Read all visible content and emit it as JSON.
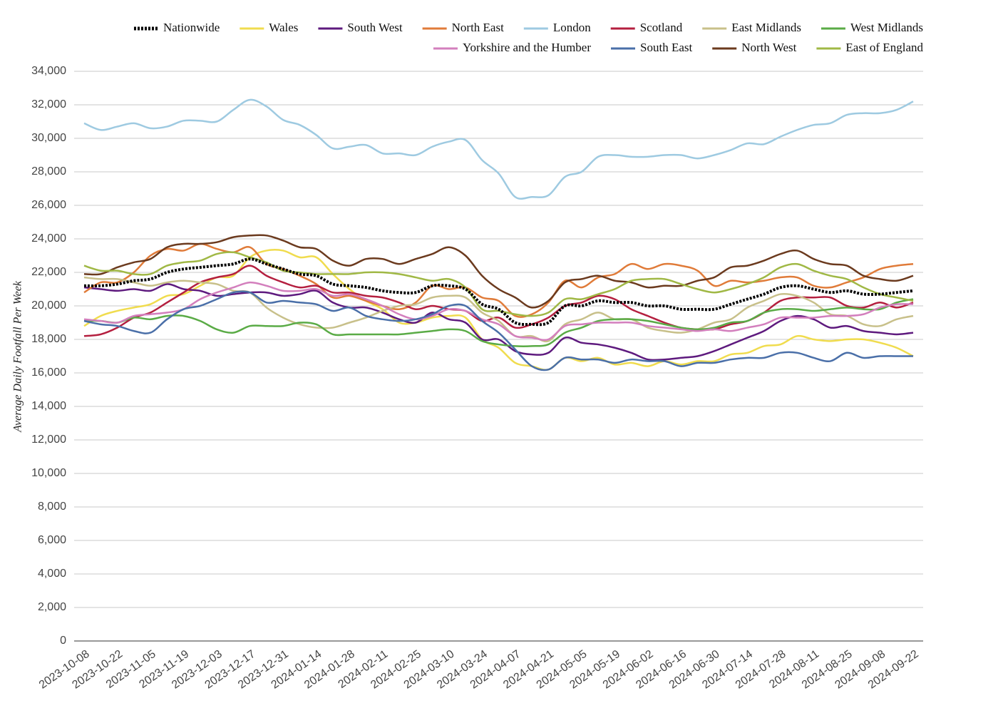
{
  "chart_data": {
    "type": "line",
    "y_label": "Average Daily Footfall Per Week",
    "categories": [
      "2023-10-08",
      null,
      "2023-10-22",
      null,
      "2023-11-05",
      null,
      "2023-11-19",
      null,
      "2023-12-03",
      null,
      "2023-12-17",
      null,
      "2023-12-31",
      null,
      "2024-01-14",
      null,
      "2024-01-28",
      null,
      "2024-02-11",
      null,
      "2024-02-25",
      null,
      "2024-03-10",
      null,
      "2024-03-24",
      null,
      "2024-04-07",
      null,
      "2024-04-21",
      null,
      "2024-05-05",
      null,
      "2024-05-19",
      null,
      "2024-06-02",
      null,
      "2024-06-16",
      null,
      "2024-06-30",
      null,
      "2024-07-14",
      null,
      "2024-07-28",
      null,
      "2024-08-11",
      null,
      "2024-08-25",
      null,
      "2024-09-08",
      null,
      "2024-09-22"
    ],
    "ylim": [
      0,
      34000
    ],
    "yticks": [
      0,
      {
        "value": 2000,
        "label": "2,000"
      },
      {
        "value": 4000,
        "label": "4,000"
      },
      {
        "value": 6000,
        "label": "6,000"
      },
      {
        "value": 8000,
        "label": "8,000"
      },
      {
        "value": 10000,
        "label": "10,000"
      },
      {
        "value": 12000,
        "label": "12,000"
      },
      {
        "value": 14000,
        "label": "14,000"
      },
      {
        "value": 16000,
        "label": "16,000"
      },
      {
        "value": 18000,
        "label": "18,000"
      },
      {
        "value": 20000,
        "label": "20,000"
      },
      {
        "value": 22000,
        "label": "22,000"
      },
      {
        "value": 24000,
        "label": "24,000"
      },
      {
        "value": 26000,
        "label": "26,000"
      },
      {
        "value": 28000,
        "label": "28,000"
      },
      {
        "value": 30000,
        "label": "30,000"
      },
      {
        "value": 32000,
        "label": "32,000"
      },
      {
        "value": 34000,
        "label": "34,000"
      }
    ],
    "grid": true,
    "legend": "top-right",
    "series": [
      {
        "name": "Nationwide",
        "color": "#000000",
        "dashed": true,
        "values": [
          21200,
          21200,
          21300,
          21500,
          21600,
          22000,
          22200,
          22300,
          22400,
          22500,
          22800,
          22500,
          22200,
          21900,
          21800,
          21300,
          21200,
          21100,
          20900,
          20800,
          20800,
          21200,
          21200,
          21000,
          20100,
          19800,
          19000,
          18900,
          19000,
          20000,
          20000,
          20300,
          20200,
          20200,
          20000,
          20000,
          19800,
          19800,
          19800,
          20100,
          20400,
          20700,
          21100,
          21200,
          21000,
          20800,
          20900,
          20700,
          20700,
          20800,
          20900
        ]
      },
      {
        "name": "Wales",
        "color": "#f0dc4e",
        "values": [
          18800,
          19400,
          19700,
          19900,
          20100,
          20600,
          20700,
          21200,
          21700,
          21800,
          22900,
          23300,
          23300,
          22900,
          22900,
          21900,
          21000,
          20300,
          19800,
          19000,
          19000,
          19300,
          19400,
          19300,
          18000,
          17500,
          16600,
          16400,
          16200,
          16900,
          16700,
          16900,
          16500,
          16600,
          16400,
          16700,
          16500,
          16700,
          16700,
          17100,
          17200,
          17600,
          17700,
          18200,
          18000,
          17900,
          18000,
          18000,
          17800,
          17500,
          17000
        ]
      },
      {
        "name": "South West",
        "color": "#5e1a7e",
        "values": [
          21100,
          21000,
          20900,
          21000,
          20900,
          21300,
          21000,
          20900,
          20600,
          20700,
          20800,
          20800,
          20600,
          20700,
          20900,
          20200,
          19900,
          19900,
          19600,
          19200,
          19000,
          19600,
          19200,
          19000,
          18000,
          18000,
          17300,
          17100,
          17200,
          18100,
          17800,
          17700,
          17500,
          17200,
          16800,
          16800,
          16900,
          17000,
          17300,
          17700,
          18100,
          18500,
          19100,
          19400,
          19200,
          18700,
          18800,
          18500,
          18400,
          18300,
          18400
        ]
      },
      {
        "name": "North East",
        "color": "#e07b39",
        "values": [
          20800,
          21400,
          21400,
          22000,
          23000,
          23400,
          23300,
          23700,
          23400,
          23200,
          23500,
          22500,
          22200,
          21800,
          21300,
          20500,
          20600,
          20300,
          20000,
          19800,
          20200,
          21200,
          21000,
          21100,
          20500,
          20300,
          19400,
          19500,
          20200,
          21500,
          21100,
          21700,
          21900,
          22500,
          22200,
          22500,
          22400,
          22100,
          21200,
          21500,
          21400,
          21500,
          21700,
          21700,
          21200,
          21100,
          21400,
          21700,
          22200,
          22400,
          22500
        ]
      },
      {
        "name": "London",
        "color": "#9ecae1",
        "values": [
          30900,
          30500,
          30700,
          30900,
          30600,
          30700,
          31050,
          31050,
          31000,
          31700,
          32300,
          31900,
          31100,
          30800,
          30200,
          29400,
          29500,
          29600,
          29100,
          29100,
          29000,
          29500,
          29800,
          29900,
          28700,
          27900,
          26500,
          26500,
          26600,
          27700,
          28000,
          28900,
          29000,
          28900,
          28900,
          29000,
          29000,
          28800,
          29000,
          29300,
          29700,
          29650,
          30100,
          30500,
          30800,
          30900,
          31400,
          31500,
          31500,
          31700,
          32200
        ]
      },
      {
        "name": "Scotland",
        "color": "#b41f3f",
        "values": [
          18200,
          18300,
          18700,
          19300,
          19600,
          20200,
          20800,
          21400,
          21700,
          21900,
          22400,
          21800,
          21400,
          21100,
          21200,
          20800,
          20800,
          20600,
          20500,
          20200,
          19800,
          20000,
          19800,
          19700,
          19100,
          19300,
          18700,
          18900,
          19300,
          20000,
          20200,
          20600,
          20400,
          19800,
          19400,
          19000,
          18700,
          18600,
          18600,
          18900,
          19100,
          19600,
          20300,
          20500,
          20500,
          20500,
          20000,
          19900,
          20200,
          19900,
          20200
        ]
      },
      {
        "name": "East Midlands",
        "color": "#c8c08a",
        "values": [
          21700,
          21600,
          21600,
          21400,
          21200,
          21400,
          21500,
          21400,
          21300,
          20900,
          20800,
          19900,
          19300,
          18900,
          18700,
          18700,
          19000,
          19300,
          19700,
          20000,
          20100,
          20500,
          20600,
          20500,
          19600,
          19100,
          18200,
          18200,
          17900,
          18900,
          19200,
          19600,
          19200,
          19200,
          18700,
          18500,
          18400,
          18600,
          19000,
          19200,
          19900,
          20300,
          20700,
          20600,
          20200,
          19500,
          19400,
          18900,
          18800,
          19200,
          19400
        ]
      },
      {
        "name": "West Midlands",
        "color": "#5aab46",
        "values": [
          19100,
          19100,
          19000,
          19300,
          19200,
          19400,
          19400,
          19100,
          18600,
          18400,
          18800,
          18800,
          18800,
          19000,
          18900,
          18300,
          18300,
          18300,
          18300,
          18300,
          18400,
          18500,
          18600,
          18500,
          17900,
          17700,
          17600,
          17600,
          17700,
          18400,
          18700,
          19100,
          19200,
          19200,
          19100,
          18900,
          18700,
          18600,
          18700,
          19000,
          19100,
          19600,
          19800,
          19800,
          19700,
          19800,
          19900,
          19800,
          19800,
          20200,
          20400
        ]
      },
      {
        "name": "Yorkshire and the Humber",
        "color": "#d37fbd",
        "values": [
          19200,
          19100,
          19000,
          19400,
          19500,
          19600,
          19800,
          20400,
          20800,
          21100,
          21400,
          21200,
          20900,
          20900,
          21000,
          20600,
          20700,
          20400,
          20000,
          19500,
          19200,
          19400,
          19800,
          19700,
          19200,
          18900,
          18200,
          18100,
          18000,
          18800,
          18900,
          19000,
          19000,
          19000,
          18800,
          18700,
          18600,
          18500,
          18600,
          18500,
          18700,
          18900,
          19300,
          19300,
          19300,
          19400,
          19400,
          19500,
          19900,
          20100,
          20100
        ]
      },
      {
        "name": "South East",
        "color": "#4a6fa8",
        "values": [
          19100,
          18900,
          18800,
          18500,
          18400,
          19200,
          19800,
          20000,
          20400,
          20800,
          20800,
          20200,
          20300,
          20200,
          20100,
          19700,
          19900,
          19400,
          19200,
          19100,
          19200,
          19500,
          20000,
          20000,
          19100,
          18400,
          17400,
          16400,
          16200,
          16900,
          16800,
          16800,
          16600,
          16800,
          16700,
          16700,
          16400,
          16600,
          16600,
          16800,
          16900,
          16900,
          17200,
          17200,
          16900,
          16700,
          17200,
          16900,
          17000,
          17000,
          17000
        ]
      },
      {
        "name": "North West",
        "color": "#6b3a1e",
        "values": [
          21900,
          21900,
          22300,
          22600,
          22800,
          23500,
          23700,
          23700,
          23800,
          24100,
          24200,
          24200,
          23900,
          23500,
          23400,
          22700,
          22400,
          22800,
          22800,
          22500,
          22800,
          23100,
          23500,
          23000,
          21800,
          21000,
          20500,
          19900,
          20300,
          21400,
          21600,
          21800,
          21500,
          21400,
          21100,
          21200,
          21200,
          21500,
          21700,
          22300,
          22400,
          22700,
          23100,
          23300,
          22800,
          22500,
          22400,
          21800,
          21600,
          21500,
          21800
        ]
      },
      {
        "name": "East of England",
        "color": "#a0b845",
        "values": [
          22400,
          22100,
          22100,
          21900,
          21900,
          22400,
          22600,
          22700,
          23100,
          23200,
          22900,
          22600,
          22100,
          22000,
          21900,
          21900,
          21900,
          22000,
          22000,
          21900,
          21700,
          21500,
          21600,
          21100,
          19800,
          19700,
          19500,
          19400,
          19600,
          20400,
          20400,
          20700,
          21000,
          21500,
          21600,
          21600,
          21300,
          21000,
          20800,
          21000,
          21300,
          21700,
          22300,
          22500,
          22100,
          21800,
          21600,
          21100,
          20700,
          20500,
          20300
        ]
      }
    ]
  }
}
